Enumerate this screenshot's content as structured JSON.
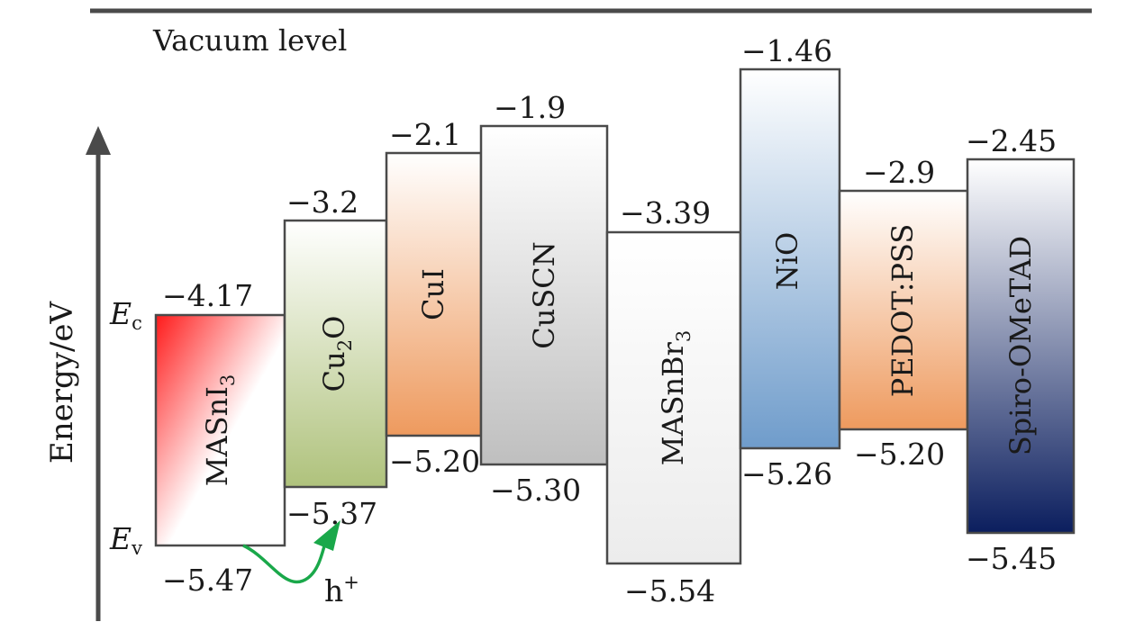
{
  "vacuum_label": "Vacuum level",
  "axis_label": "Energy/eV",
  "ec_label": {
    "main": "E",
    "sub": "c"
  },
  "ev_label": {
    "main": "E",
    "sub": "v"
  },
  "hole_label": {
    "main": "h",
    "sup": "+"
  },
  "materials": [
    {
      "name": "MASnI",
      "sub": "3",
      "cb_label": "−4.17",
      "vb_label": "−5.47",
      "colors": [
        "#ff1a1a",
        "#ffffff"
      ]
    },
    {
      "name": "Cu",
      "sub": "2",
      "tail": "O",
      "cb_label": "−3.2",
      "vb_label": "−5.37",
      "colors": [
        "#ffffff",
        "#afc27c"
      ]
    },
    {
      "name": "CuI",
      "cb_label": "−2.1",
      "vb_label": "−5.20",
      "colors": [
        "#ffffff",
        "#ee9a5e"
      ]
    },
    {
      "name": "CuSCN",
      "cb_label": "−1.9",
      "vb_label": "−5.30",
      "colors": [
        "#ffffff",
        "#bfbfbf"
      ]
    },
    {
      "name": "MASnBr",
      "sub": "3",
      "cb_label": "−3.39",
      "vb_label": "−5.54",
      "colors": [
        "#ffffff",
        "#ececec"
      ]
    },
    {
      "name": "NiO",
      "cb_label": "−1.46",
      "vb_label": "−5.26",
      "colors": [
        "#ffffff",
        "#6f9ccb"
      ]
    },
    {
      "name": "PEDOT:PSS",
      "cb_label": "−2.9",
      "vb_label": "−5.20",
      "colors": [
        "#ffffff",
        "#ee9a5e"
      ]
    },
    {
      "name": "Spiro-OMeTAD",
      "cb_label": "−2.45",
      "vb_label": "−5.45",
      "colors": [
        "#ffffff",
        "#0b1e5e"
      ]
    }
  ],
  "arrow_color": "#1aa84a"
}
